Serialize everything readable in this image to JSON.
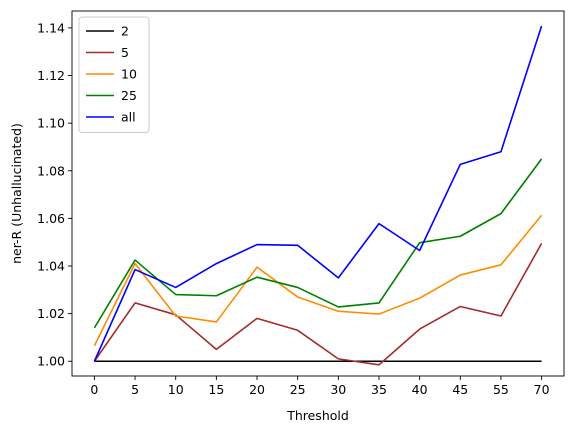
{
  "chart_data": {
    "type": "line",
    "title": "",
    "xlabel": "Threshold",
    "ylabel": "ner-R (Unhallucinated)",
    "x": [
      0,
      5,
      10,
      15,
      20,
      25,
      30,
      35,
      40,
      45,
      55,
      70
    ],
    "x_tick_labels": [
      "0",
      "5",
      "10",
      "15",
      "20",
      "25",
      "30",
      "35",
      "40",
      "45",
      "55",
      "70"
    ],
    "ylim": [
      0.9938,
      1.1471
    ],
    "y_ticks": [
      1.0,
      1.02,
      1.04,
      1.06,
      1.08,
      1.1,
      1.12,
      1.14
    ],
    "y_tick_labels": [
      "1.00",
      "1.02",
      "1.04",
      "1.06",
      "1.08",
      "1.10",
      "1.12",
      "1.14"
    ],
    "grid": false,
    "legend_position": "top-left",
    "series": [
      {
        "name": "2",
        "color": "#000000",
        "values": [
          1.0,
          1.0,
          1.0,
          1.0,
          1.0,
          1.0,
          1.0,
          1.0,
          1.0,
          1.0,
          1.0,
          1.0
        ]
      },
      {
        "name": "5",
        "color": "#a52a2a",
        "values": [
          1.0,
          1.0245,
          1.0195,
          1.005,
          1.018,
          1.013,
          1.001,
          0.9985,
          1.0135,
          1.023,
          1.019,
          1.0495
        ]
      },
      {
        "name": "10",
        "color": "#ff8c00",
        "values": [
          1.0065,
          1.041,
          1.019,
          1.0165,
          1.0395,
          1.027,
          1.021,
          1.0198,
          1.0265,
          1.0362,
          1.0405,
          1.0613
        ]
      },
      {
        "name": "25",
        "color": "#008000",
        "values": [
          1.014,
          1.0425,
          1.028,
          1.0275,
          1.0353,
          1.031,
          1.0228,
          1.0245,
          1.0498,
          1.0525,
          1.062,
          1.085
        ]
      },
      {
        "name": "all",
        "color": "#0000ff",
        "values": [
          1.0,
          1.0385,
          1.031,
          1.041,
          1.049,
          1.0487,
          1.035,
          1.0578,
          1.0465,
          1.0827,
          1.088,
          1.1408
        ]
      }
    ]
  }
}
